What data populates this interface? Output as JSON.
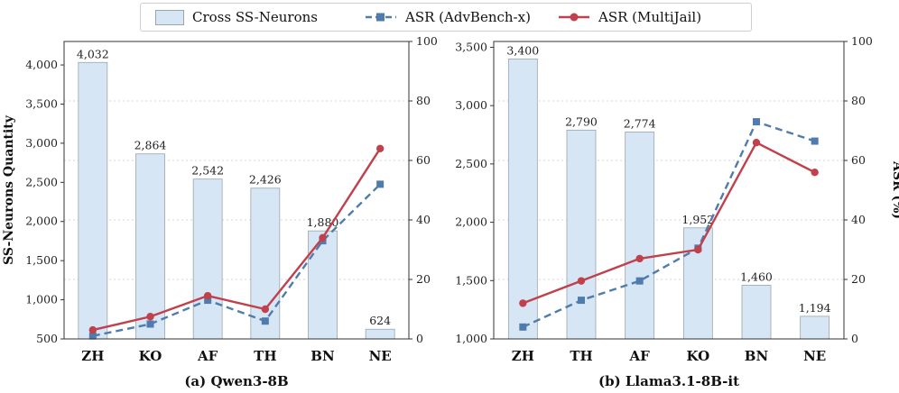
{
  "legend": {
    "bars_label": "Cross SS-Neurons",
    "adv_label": "ASR (AdvBench-x)",
    "mj_label": "ASR (MultiJail)"
  },
  "colors": {
    "bar_fill": "#d6e6f4",
    "bar_edge": "#9aa5ad",
    "adv": "#4f7cac",
    "mj": "#c0404c",
    "grid": "#d5d5d5"
  },
  "chart_data": [
    {
      "type": "bar+line",
      "title": "(a) Qwen3-8B",
      "categories": [
        "ZH",
        "KO",
        "AF",
        "TH",
        "BN",
        "NE"
      ],
      "bar_values": [
        4032,
        2864,
        2542,
        2426,
        1880,
        624
      ],
      "bar_labels": [
        "4,032",
        "2,864",
        "2,542",
        "2,426",
        "1,880",
        "624"
      ],
      "ylabel": "SS-Neurons Quantity",
      "ylim": [
        500,
        4300
      ],
      "yticks": [
        500,
        1000,
        1500,
        2000,
        2500,
        3000,
        3500,
        4000
      ],
      "ytick_labels": [
        "500",
        "1,000",
        "1,500",
        "2,000",
        "2,500",
        "3,000",
        "3,500",
        "4,000"
      ],
      "y2label": "",
      "y2lim": [
        0,
        100
      ],
      "y2ticks": [
        0,
        20,
        40,
        60,
        80,
        100
      ],
      "series": [
        {
          "name": "ASR (AdvBench-x)",
          "values": [
            1,
            5,
            13,
            6,
            33,
            52
          ]
        },
        {
          "name": "ASR (MultiJail)",
          "values": [
            3,
            7.5,
            14.5,
            10,
            34,
            64
          ]
        }
      ]
    },
    {
      "type": "bar+line",
      "title": "(b) Llama3.1-8B-it",
      "categories": [
        "ZH",
        "TH",
        "AF",
        "KO",
        "BN",
        "NE"
      ],
      "bar_values": [
        3400,
        2790,
        2774,
        1952,
        1460,
        1194
      ],
      "bar_labels": [
        "3,400",
        "2,790",
        "2,774",
        "1,952",
        "1,460",
        "1,194"
      ],
      "ylabel": "",
      "ylim": [
        1000,
        3550
      ],
      "yticks": [
        1000,
        1500,
        2000,
        2500,
        3000,
        3500
      ],
      "ytick_labels": [
        "1,000",
        "1,500",
        "2,000",
        "2,500",
        "3,000",
        "3,500"
      ],
      "y2label": "ASR (%)",
      "y2lim": [
        0,
        100
      ],
      "y2ticks": [
        0,
        20,
        40,
        60,
        80,
        100
      ],
      "series": [
        {
          "name": "ASR (AdvBench-x)",
          "values": [
            4,
            13,
            19.5,
            30.5,
            73,
            66.5
          ]
        },
        {
          "name": "ASR (MultiJail)",
          "values": [
            12,
            19.5,
            27,
            30,
            66,
            56
          ]
        }
      ]
    }
  ]
}
